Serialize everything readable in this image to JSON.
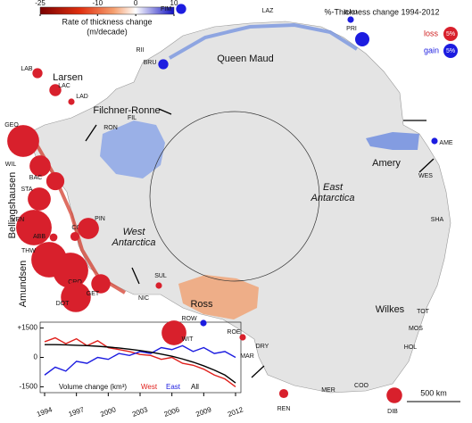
{
  "map": {
    "colorbar": {
      "label": "Rate of thickness change",
      "unit": "(m/decade)",
      "lim": [
        -25,
        10
      ],
      "ticks": [
        -25,
        -10,
        0,
        10
      ]
    },
    "legend": {
      "title": "%-Thickness change 1994-2012",
      "loss": "loss",
      "gain": "gain",
      "size_label": "5%",
      "size_value": 5
    },
    "regions": [
      "Queen Maud",
      "Larsen",
      "Filchner-Ronne",
      "Bellingshausen",
      "Amundsen",
      "West\nAntarctica",
      "East\nAntarctica",
      "Amery",
      "Wilkes",
      "Ross"
    ],
    "shelves": [
      {
        "label": "FIM",
        "change": 2.5
      },
      {
        "label": "BAU",
        "change": 1
      },
      {
        "label": "PRI",
        "change": 5
      },
      {
        "label": "BRU",
        "change": 2.5
      },
      {
        "label": "LAB",
        "change": -2.5
      },
      {
        "label": "LAC",
        "change": -3.5
      },
      {
        "label": "LAD",
        "change": -1
      },
      {
        "label": "GEO",
        "change": -25
      },
      {
        "label": "WIL",
        "change": -11
      },
      {
        "label": "BAC",
        "change": -8
      },
      {
        "label": "STA",
        "change": -13
      },
      {
        "label": "VEN",
        "change": -31
      },
      {
        "label": "ABB",
        "change": -1.5
      },
      {
        "label": "COS",
        "change": -2
      },
      {
        "label": "PIN",
        "change": -11
      },
      {
        "label": "THW",
        "change": -31
      },
      {
        "label": "CRO",
        "change": -31
      },
      {
        "label": "DOT",
        "change": -22
      },
      {
        "label": "GET",
        "change": -9
      },
      {
        "label": "SUL",
        "change": -1
      },
      {
        "label": "WIT",
        "change": -15
      },
      {
        "label": "ROW",
        "change": 1
      },
      {
        "label": "ROE",
        "change": -1
      },
      {
        "label": "REN",
        "change": -2
      },
      {
        "label": "DIB",
        "change": -6
      },
      {
        "label": "AME",
        "change": 1
      }
    ],
    "labels": [
      "LAZ",
      "RII",
      "RON",
      "FIL",
      "WES",
      "SHA",
      "TOT",
      "MOS",
      "HOL",
      "MER",
      "COO",
      "MAR",
      "DRY",
      "NIC"
    ],
    "scale_bar": "500 km"
  },
  "chart_data": {
    "type": "line",
    "ylabel": "Volume change (km³)",
    "x": [
      1994,
      1995,
      1996,
      1997,
      1998,
      1999,
      2000,
      2001,
      2002,
      2003,
      2004,
      2005,
      2006,
      2007,
      2008,
      2009,
      2010,
      2011,
      2012
    ],
    "xlim": [
      1994,
      2012
    ],
    "xticks": [
      1994,
      1997,
      2000,
      2003,
      2006,
      2009,
      2012
    ],
    "ylim": [
      -1800,
      1800
    ],
    "yticks": [
      {
        "value": 1500,
        "label": "+1500"
      },
      0,
      -1500
    ],
    "series": [
      {
        "name": "West",
        "color": "#e0201c",
        "values": [
          800,
          1000,
          700,
          950,
          600,
          850,
          500,
          400,
          300,
          150,
          100,
          -100,
          0,
          -300,
          -400,
          -600,
          -900,
          -1100,
          -1500
        ]
      },
      {
        "name": "East",
        "color": "#1c1ce0",
        "values": [
          -900,
          -500,
          -700,
          -200,
          -300,
          0,
          -100,
          200,
          100,
          300,
          200,
          500,
          400,
          600,
          300,
          500,
          200,
          300,
          0
        ]
      },
      {
        "name": "All",
        "color": "#000000",
        "values": [
          650,
          650,
          640,
          620,
          600,
          570,
          530,
          480,
          420,
          350,
          270,
          170,
          60,
          -80,
          -240,
          -430,
          -650,
          -900,
          -1300
        ]
      }
    ]
  }
}
